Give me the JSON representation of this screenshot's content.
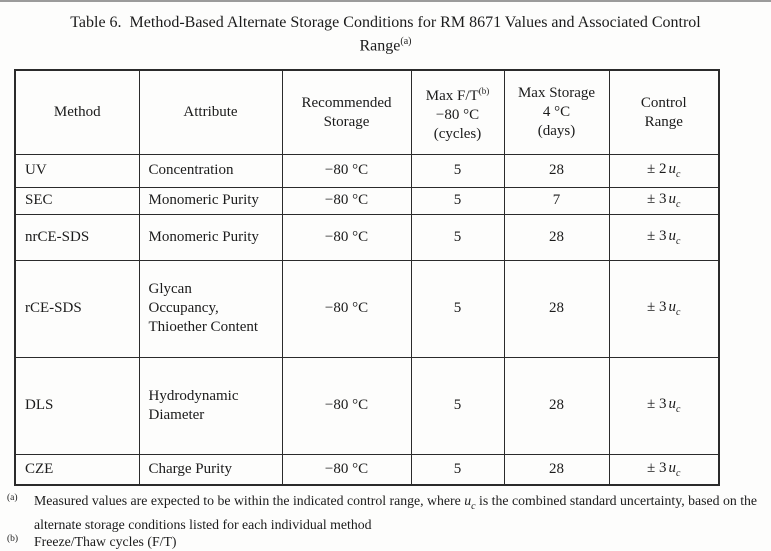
{
  "page": {
    "title_line1": "Table 6.  Method-Based Alternate Storage Conditions for RM 8671 Values and Associated Control",
    "title_line2": "Range",
    "title_superscript": "(a)"
  },
  "table": {
    "header": [
      {
        "lines": [
          {
            "t": "Method"
          }
        ]
      },
      {
        "lines": [
          {
            "t": "Attribute"
          }
        ]
      },
      {
        "lines": [
          {
            "t": "Recommended"
          },
          {
            "t": "Storage"
          }
        ]
      },
      {
        "lines": [
          {
            "t": "Max F/T",
            "sup": "(b)"
          },
          {
            "t": "−80 °C"
          },
          {
            "t": "(cycles)"
          }
        ]
      },
      {
        "lines": [
          {
            "t": "Max Storage"
          },
          {
            "t": "4 °C"
          },
          {
            "t": "(days)"
          }
        ]
      },
      {
        "lines": [
          {
            "t": "Control"
          },
          {
            "t": "Range"
          }
        ]
      }
    ],
    "rows": [
      {
        "method": "UV",
        "attribute_lines": [
          "Concentration"
        ],
        "recommended_storage": "−80 °C",
        "max_ft_cycles": "5",
        "max_storage_days": "28",
        "control_range": {
          "text": "± 2",
          "var": "u",
          "sub": "c"
        }
      },
      {
        "method": "SEC",
        "attribute_lines": [
          "Monomeric Purity"
        ],
        "recommended_storage": "−80 °C",
        "max_ft_cycles": "5",
        "max_storage_days": "7",
        "control_range": {
          "text": "± 3",
          "var": "u",
          "sub": "c"
        }
      },
      {
        "method": "nrCE-SDS",
        "attribute_lines": [
          "Monomeric Purity"
        ],
        "recommended_storage": "−80 °C",
        "max_ft_cycles": "5",
        "max_storage_days": "28",
        "control_range": {
          "text": "± 3",
          "var": "u",
          "sub": "c"
        }
      },
      {
        "method": "rCE-SDS",
        "attribute_lines": [
          "Glycan",
          "Occupancy,",
          "Thioether Content"
        ],
        "recommended_storage": "−80 °C",
        "max_ft_cycles": "5",
        "max_storage_days": "28",
        "control_range": {
          "text": "± 3",
          "var": "u",
          "sub": "c"
        }
      },
      {
        "method": "DLS",
        "attribute_lines": [
          "Hydrodynamic",
          "Diameter"
        ],
        "recommended_storage": "−80 °C",
        "max_ft_cycles": "5",
        "max_storage_days": "28",
        "control_range": {
          "text": "± 3",
          "var": "u",
          "sub": "c"
        }
      },
      {
        "method": "CZE",
        "attribute_lines": [
          "Charge Purity"
        ],
        "recommended_storage": "−80 °C",
        "max_ft_cycles": "5",
        "max_storage_days": "28",
        "control_range": {
          "text": "± 3",
          "var": "u",
          "sub": "c"
        }
      }
    ]
  },
  "footnotes": [
    {
      "marker": "(a)",
      "segments": [
        {
          "t": "Measured values are expected to be within the indicated control range, where "
        },
        {
          "var": "u",
          "sub": "c"
        },
        {
          "t": " is the combined standard uncertainty, based on the alternate storage conditions listed for each individual method"
        }
      ]
    },
    {
      "marker": "(b)",
      "segments": [
        {
          "t": "Freeze/Thaw cycles (F/T)"
        }
      ]
    }
  ]
}
